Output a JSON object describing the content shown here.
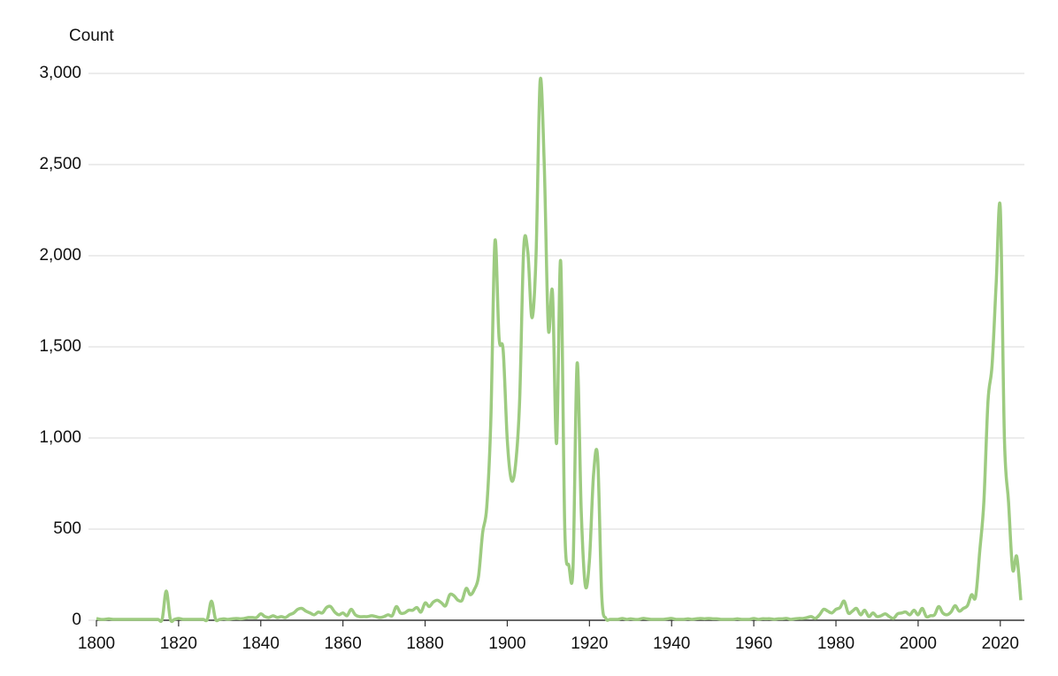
{
  "chart_data": {
    "type": "line",
    "y_label": "Count",
    "x": [
      1800,
      1801,
      1802,
      1803,
      1804,
      1805,
      1806,
      1807,
      1808,
      1809,
      1810,
      1811,
      1812,
      1813,
      1814,
      1815,
      1816,
      1817,
      1818,
      1819,
      1820,
      1821,
      1822,
      1823,
      1824,
      1825,
      1826,
      1827,
      1828,
      1829,
      1830,
      1831,
      1832,
      1833,
      1834,
      1835,
      1836,
      1837,
      1838,
      1839,
      1840,
      1841,
      1842,
      1843,
      1844,
      1845,
      1846,
      1847,
      1848,
      1849,
      1850,
      1851,
      1852,
      1853,
      1854,
      1855,
      1856,
      1857,
      1858,
      1859,
      1860,
      1861,
      1862,
      1863,
      1864,
      1865,
      1866,
      1867,
      1868,
      1869,
      1870,
      1871,
      1872,
      1873,
      1874,
      1875,
      1876,
      1877,
      1878,
      1879,
      1880,
      1881,
      1882,
      1883,
      1884,
      1885,
      1886,
      1887,
      1888,
      1889,
      1890,
      1891,
      1892,
      1893,
      1894,
      1895,
      1896,
      1897,
      1898,
      1899,
      1900,
      1901,
      1902,
      1903,
      1904,
      1905,
      1906,
      1907,
      1908,
      1909,
      1910,
      1911,
      1912,
      1913,
      1914,
      1915,
      1916,
      1917,
      1918,
      1919,
      1920,
      1921,
      1922,
      1923,
      1924,
      1925,
      1926,
      1927,
      1928,
      1929,
      1930,
      1931,
      1932,
      1933,
      1934,
      1935,
      1936,
      1937,
      1938,
      1939,
      1940,
      1941,
      1942,
      1943,
      1944,
      1945,
      1946,
      1947,
      1948,
      1949,
      1950,
      1951,
      1952,
      1953,
      1954,
      1955,
      1956,
      1957,
      1958,
      1959,
      1960,
      1961,
      1962,
      1963,
      1964,
      1965,
      1966,
      1967,
      1968,
      1969,
      1970,
      1971,
      1972,
      1973,
      1974,
      1975,
      1976,
      1977,
      1978,
      1979,
      1980,
      1981,
      1982,
      1983,
      1984,
      1985,
      1986,
      1987,
      1988,
      1989,
      1990,
      1991,
      1992,
      1993,
      1994,
      1995,
      1996,
      1997,
      1998,
      1999,
      2000,
      2001,
      2002,
      2003,
      2004,
      2005,
      2006,
      2007,
      2008,
      2009,
      2010,
      2011,
      2012,
      2013,
      2014,
      2015,
      2016,
      2017,
      2018,
      2019,
      2020,
      2021,
      2022,
      2023,
      2024,
      2025
    ],
    "series": [
      {
        "color": "#9dcb80",
        "values": [
          10,
          5,
          5,
          8,
          5,
          5,
          5,
          5,
          5,
          5,
          5,
          5,
          5,
          5,
          5,
          5,
          5,
          160,
          5,
          5,
          10,
          5,
          5,
          5,
          5,
          5,
          5,
          5,
          105,
          5,
          5,
          8,
          5,
          8,
          10,
          8,
          10,
          15,
          15,
          15,
          35,
          20,
          15,
          25,
          15,
          20,
          15,
          30,
          40,
          60,
          65,
          50,
          40,
          30,
          45,
          40,
          70,
          75,
          45,
          30,
          40,
          25,
          60,
          30,
          20,
          20,
          20,
          25,
          20,
          15,
          20,
          30,
          25,
          75,
          40,
          40,
          55,
          55,
          70,
          45,
          95,
          75,
          100,
          110,
          95,
          80,
          140,
          135,
          110,
          110,
          175,
          140,
          170,
          240,
          480,
          620,
          1100,
          2080,
          1550,
          1480,
          990,
          770,
          850,
          1200,
          2040,
          2020,
          1660,
          2000,
          2960,
          2500,
          1600,
          1800,
          970,
          1970,
          500,
          300,
          290,
          1410,
          600,
          190,
          330,
          800,
          890,
          130,
          10,
          5,
          5,
          5,
          10,
          5,
          8,
          5,
          5,
          10,
          8,
          5,
          5,
          5,
          5,
          8,
          10,
          5,
          5,
          5,
          8,
          5,
          8,
          10,
          8,
          10,
          8,
          8,
          5,
          5,
          5,
          5,
          8,
          5,
          5,
          5,
          10,
          5,
          8,
          8,
          8,
          5,
          8,
          8,
          10,
          5,
          8,
          10,
          10,
          15,
          20,
          10,
          30,
          60,
          50,
          40,
          60,
          70,
          105,
          40,
          50,
          65,
          30,
          55,
          20,
          40,
          20,
          25,
          35,
          20,
          10,
          35,
          40,
          45,
          30,
          55,
          30,
          65,
          20,
          25,
          30,
          75,
          40,
          30,
          45,
          80,
          50,
          65,
          80,
          140,
          130,
          380,
          650,
          1200,
          1400,
          1850,
          2260,
          1000,
          650,
          280,
          350,
          110
        ]
      }
    ],
    "xlim": [
      1800,
      2025
    ],
    "xticks": [
      1800,
      1820,
      1840,
      1860,
      1880,
      1900,
      1920,
      1940,
      1960,
      1980,
      2000,
      2020
    ],
    "ylim": [
      0,
      3000
    ],
    "yticks": [
      0,
      500,
      {
        "value": 1000,
        "label": "1,000"
      },
      {
        "value": 1500,
        "label": "1,500"
      },
      {
        "value": 2000,
        "label": "2,000"
      },
      {
        "value": 2500,
        "label": "2,500"
      },
      {
        "value": 3000,
        "label": "3,000"
      }
    ],
    "grid": true
  }
}
